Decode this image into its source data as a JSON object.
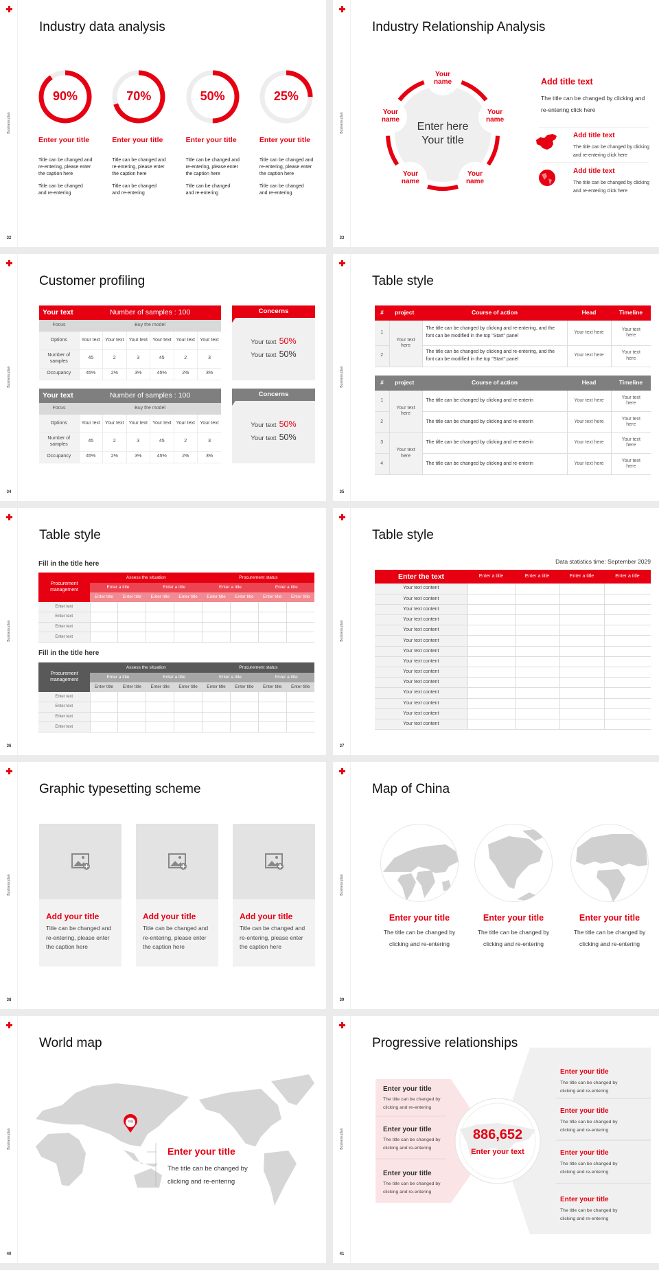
{
  "common": {
    "sidebar_label": "Business plan",
    "accent": "#e60012",
    "gray_theme": "#7f7f7f"
  },
  "slides": [
    {
      "page": "32",
      "title": "Industry data analysis",
      "rings": [
        {
          "percent": 90,
          "label": "90%",
          "title": "Enter your title",
          "caption": "Title can be changed and re-entering, please enter the caption here",
          "note": "Title can be changed and re-entering"
        },
        {
          "percent": 70,
          "label": "70%",
          "title": "Enter your title",
          "caption": "Title can be changed and re-entering, please enter the caption here",
          "note": "Title can be changed and re-entering"
        },
        {
          "percent": 50,
          "label": "50%",
          "title": "Enter your title",
          "caption": "Title can be changed and re-entering, please enter the caption here",
          "note": "Title can be changed and re-entering"
        },
        {
          "percent": 25,
          "label": "25%",
          "title": "Enter your title",
          "caption": "Title can be changed and re-entering, please enter the caption here",
          "note": "Title can be changed and re-entering"
        }
      ]
    },
    {
      "page": "33",
      "title": "Industry Relationship Analysis",
      "center": [
        "Enter here",
        "Your title"
      ],
      "nodes": [
        "Your name",
        "Your name",
        "Your name",
        "Your name",
        "Your name"
      ],
      "main": {
        "title": "Add title text",
        "text": "The title can be changed by clicking and re-entering click here"
      },
      "items": [
        {
          "icon": "china-map-icon",
          "title": "Add title text",
          "text": "The title can be changed by clicking and re-entering click here"
        },
        {
          "icon": "globe-icon",
          "title": "Add title text",
          "text": "The title can be changed by clicking and re-entering click here"
        }
      ]
    },
    {
      "page": "34",
      "title": "Customer profiling",
      "tables": [
        {
          "theme": "red",
          "head_left": "Your text",
          "head_right": "Number of samples : 100",
          "focus": "Focus",
          "focus_value": "Buy the model",
          "rows": [
            {
              "label": "Options",
              "cells": [
                "Your text",
                "Your text",
                "Your text",
                "Your text",
                "Your text",
                "Your text"
              ]
            },
            {
              "label": "Number of samples",
              "cells": [
                "45",
                "2",
                "3",
                "45",
                "2",
                "3"
              ]
            },
            {
              "label": "Occupancy",
              "cells": [
                "45%",
                "2%",
                "3%",
                "45%",
                "2%",
                "3%"
              ]
            }
          ],
          "concerns": {
            "title": "Concerns",
            "lines": [
              {
                "text": "Your text",
                "value": "50%",
                "color": "#e60012"
              },
              {
                "text": "Your text",
                "value": "50%",
                "color": "#333333"
              }
            ]
          }
        },
        {
          "theme": "gray",
          "head_left": "Your text",
          "head_right": "Number of samples : 100",
          "focus": "Focus",
          "focus_value": "Buy the model",
          "rows": [
            {
              "label": "Options",
              "cells": [
                "Your text",
                "Your text",
                "Your text",
                "Your text",
                "Your text",
                "Your text"
              ]
            },
            {
              "label": "Number of samples",
              "cells": [
                "45",
                "2",
                "3",
                "45",
                "2",
                "3"
              ]
            },
            {
              "label": "Occupancy",
              "cells": [
                "45%",
                "2%",
                "3%",
                "45%",
                "2%",
                "3%"
              ]
            }
          ],
          "concerns": {
            "title": "Concerns",
            "lines": [
              {
                "text": "Your text",
                "value": "50%",
                "color": "#e60012"
              },
              {
                "text": "Your text",
                "value": "50%",
                "color": "#333333"
              }
            ]
          }
        }
      ]
    },
    {
      "page": "35",
      "title": "Table style",
      "columns": [
        "#",
        "project",
        "Course of action",
        "Head",
        "Timeline"
      ],
      "tables": [
        {
          "theme": "red",
          "groups": [
            {
              "project": "Your text here",
              "rows": [
                {
                  "n": "1",
                  "action": "The title can be changed by clicking and re-entering, and the font can be modified in the top \"Start\" panel",
                  "head": "Your text here",
                  "timeline": "Your text here"
                },
                {
                  "n": "2",
                  "action": "The title can be changed by clicking and re-entering, and the font can be modified in the top \"Start\" panel",
                  "head": "Your text here",
                  "timeline": "Your text here"
                }
              ]
            }
          ]
        },
        {
          "theme": "gray",
          "groups": [
            {
              "project": "Your text here",
              "rows": [
                {
                  "n": "1",
                  "action": "The title can be changed by clicking and re-enterin",
                  "head": "Your text here",
                  "timeline": "Your text here"
                },
                {
                  "n": "2",
                  "action": "The title can be changed by clicking and re-enterin",
                  "head": "Your text here",
                  "timeline": "Your text here"
                }
              ]
            },
            {
              "project": "Your text here",
              "rows": [
                {
                  "n": "3",
                  "action": "The title can be changed by clicking and re-enterin",
                  "head": "Your text here",
                  "timeline": "Your text here"
                },
                {
                  "n": "4",
                  "action": "The title can be changed by clicking and re-enterin",
                  "head": "Your text here",
                  "timeline": "Your text here"
                }
              ]
            }
          ]
        }
      ]
    },
    {
      "page": "36",
      "title": "Table style",
      "tables": [
        {
          "theme": "red",
          "caption": "Fill in the title here",
          "corner": "Procurement management",
          "groups": [
            "Assess the situation",
            "Procurement status"
          ],
          "subgroups": [
            "Enter a title",
            "Enter a title",
            "Enter a title",
            "Enter a title"
          ],
          "columns": [
            "Enter title",
            "Enter title",
            "Enter title",
            "Enter title",
            "Enter title",
            "Enter title",
            "Enter title",
            "Enter title"
          ],
          "rows": [
            "Enter text",
            "Enter text",
            "Enter text",
            "Enter text"
          ]
        },
        {
          "theme": "gray",
          "caption": "Fill in the title here",
          "corner": "Procurement management",
          "groups": [
            "Assess the situation",
            "Procurement status"
          ],
          "subgroups": [
            "Enter a title",
            "Enter a title",
            "Enter a title",
            "Enter a title"
          ],
          "columns": [
            "Enter title",
            "Enter title",
            "Enter title",
            "Enter title",
            "Enter title",
            "Enter title",
            "Enter title",
            "Enter title"
          ],
          "rows": [
            "Enter text",
            "Enter text",
            "Enter text",
            "Enter text"
          ]
        }
      ]
    },
    {
      "page": "37",
      "title": "Table style",
      "note": "Data statistics time: September 2029",
      "header": [
        "Enter the text",
        "Enter a title",
        "Enter a title",
        "Enter a title",
        "Enter a title"
      ],
      "rows": [
        "Your text content",
        "Your text content",
        "Your text content",
        "Your text content",
        "Your text content",
        "Your text content",
        "Your text content",
        "Your text content",
        "Your text content",
        "Your text content",
        "Your text content",
        "Your text content",
        "Your text content",
        "Your text content"
      ]
    },
    {
      "page": "38",
      "title": "Graphic typesetting scheme",
      "cards": [
        {
          "icon": "image-add-icon",
          "title": "Add your title",
          "text": "Title can be changed and re-entering, please enter the caption here"
        },
        {
          "icon": "image-add-icon",
          "title": "Add your title",
          "text": "Title can be changed and re-entering, please enter the caption here"
        },
        {
          "icon": "image-add-icon",
          "title": "Add your title",
          "text": "Title can be changed and re-entering, please enter the caption here"
        }
      ]
    },
    {
      "page": "39",
      "title": "Map of China",
      "globes": [
        {
          "title": "Enter your title",
          "text": "The title can be changed by clicking and re-entering"
        },
        {
          "title": "Enter your title",
          "text": "The title can be changed by clicking and re-entering"
        },
        {
          "title": "Enter your title",
          "text": "The title can be changed by clicking and re-entering"
        }
      ]
    },
    {
      "page": "40",
      "title": "World map",
      "pin_label": "中国",
      "callout": {
        "title": "Enter your title",
        "text": "The title can be changed by clicking and re-entering"
      }
    },
    {
      "page": "41",
      "title": "Progressive relationships",
      "center": {
        "value": "886,652",
        "label": "Enter your text"
      },
      "left_items": [
        {
          "title": "Enter your title",
          "text": "The title can be changed by clicking and re-entering"
        },
        {
          "title": "Enter your title",
          "text": "The title can be changed by clicking and re-entering"
        },
        {
          "title": "Enter your title",
          "text": "The title can be changed by clicking and re-entering"
        }
      ],
      "right_items": [
        {
          "title": "Enter your title",
          "text": "The title can be changed by clicking and re-entering"
        },
        {
          "title": "Enter your title",
          "text": "The title can be changed by clicking and re-entering"
        },
        {
          "title": "Enter your title",
          "text": "The title can be changed by clicking and re-entering"
        },
        {
          "title": "Enter your title",
          "text": "The title can be changed by clicking and re-entering"
        }
      ]
    }
  ]
}
